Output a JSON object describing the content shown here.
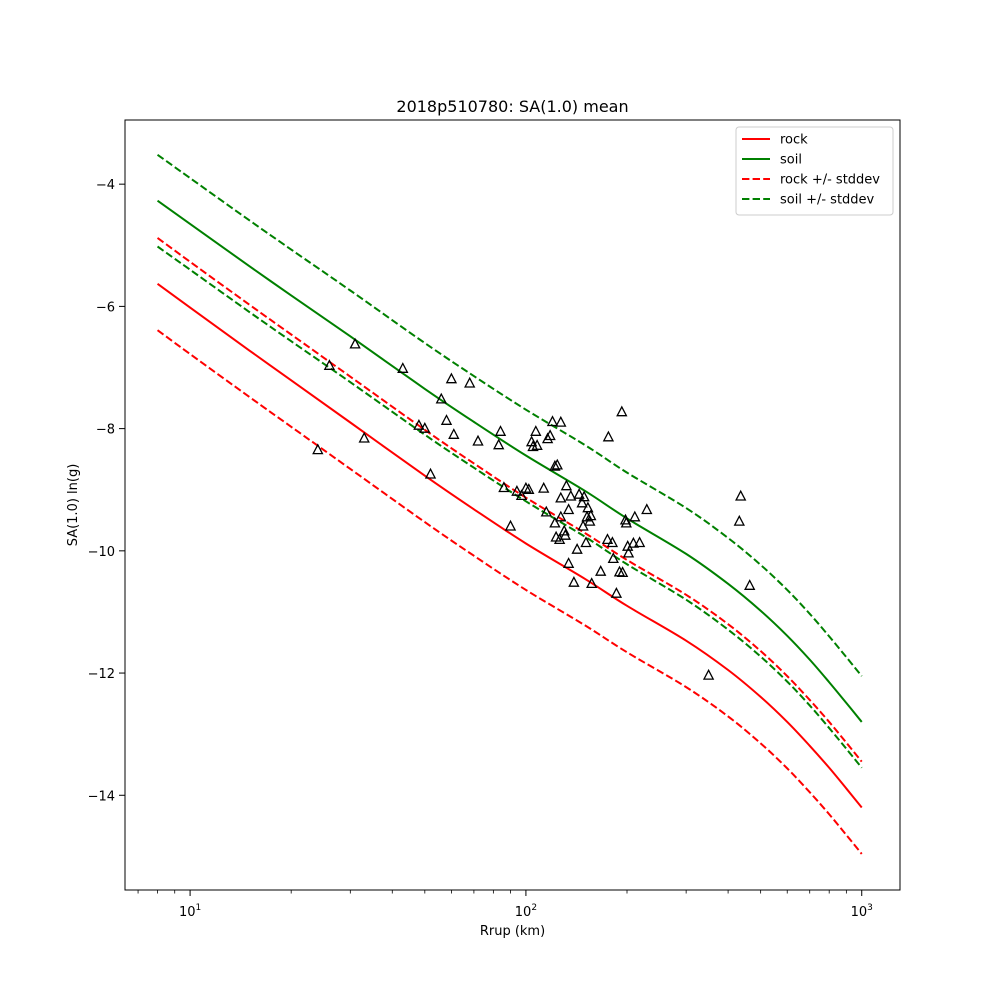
{
  "chart_data": {
    "type": "line",
    "title": "2018p510780: SA(1.0) mean",
    "xlabel": "Rrup (km)",
    "ylabel": "SA(1.0) ln(g)",
    "xscale": "log",
    "xlim": [
      6.4,
      1300
    ],
    "ylim": [
      -15.55,
      -2.95
    ],
    "xticks": [
      {
        "value": 10,
        "base": "10",
        "exp": "1"
      },
      {
        "value": 100,
        "base": "10",
        "exp": "2"
      },
      {
        "value": 1000,
        "base": "10",
        "exp": "3"
      }
    ],
    "yticks": [
      {
        "value": -4,
        "label": "−4"
      },
      {
        "value": -6,
        "label": "−6"
      },
      {
        "value": -8,
        "label": "−8"
      },
      {
        "value": -10,
        "label": "−10"
      },
      {
        "value": -12,
        "label": "−12"
      },
      {
        "value": -14,
        "label": "−14"
      }
    ],
    "legend_position": "top-right",
    "grid": false,
    "x": [
      8,
      10,
      15,
      20,
      30,
      50,
      70,
      100,
      150,
      200,
      300,
      400,
      500,
      600,
      700,
      800,
      900,
      1000
    ],
    "series": [
      {
        "name": "rock",
        "color": "#ff0000",
        "dash": "solid",
        "y": [
          -5.63,
          -6.02,
          -6.72,
          -7.21,
          -7.9,
          -8.77,
          -9.32,
          -9.88,
          -10.46,
          -10.9,
          -11.47,
          -11.95,
          -12.39,
          -12.8,
          -13.19,
          -13.55,
          -13.89,
          -14.2
        ]
      },
      {
        "name": "soil",
        "color": "#008000",
        "dash": "solid",
        "y": [
          -4.27,
          -4.65,
          -5.34,
          -5.82,
          -6.49,
          -7.35,
          -7.89,
          -8.44,
          -9.02,
          -9.47,
          -10.05,
          -10.54,
          -10.98,
          -11.39,
          -11.78,
          -12.15,
          -12.49,
          -12.8
        ]
      },
      {
        "name": "rock +/- stddev",
        "color": "#ff0000",
        "dash": "dashed",
        "group": "upper",
        "y": [
          -4.88,
          -5.27,
          -5.97,
          -6.46,
          -7.15,
          -8.02,
          -8.57,
          -9.13,
          -9.71,
          -10.15,
          -10.72,
          -11.2,
          -11.64,
          -12.05,
          -12.44,
          -12.8,
          -13.14,
          -13.45
        ]
      },
      {
        "name": "rock +/- stddev",
        "color": "#ff0000",
        "dash": "dashed",
        "group": "lower",
        "y": [
          -6.39,
          -6.78,
          -7.48,
          -7.97,
          -8.66,
          -9.53,
          -10.08,
          -10.64,
          -11.22,
          -11.66,
          -12.23,
          -12.71,
          -13.15,
          -13.56,
          -13.95,
          -14.31,
          -14.65,
          -14.96
        ]
      },
      {
        "name": "soil +/- stddev",
        "color": "#008000",
        "dash": "dashed",
        "group": "upper",
        "y": [
          -3.52,
          -3.9,
          -4.59,
          -5.07,
          -5.74,
          -6.6,
          -7.14,
          -7.69,
          -8.27,
          -8.72,
          -9.3,
          -9.79,
          -10.23,
          -10.64,
          -11.03,
          -11.4,
          -11.74,
          -12.05
        ]
      },
      {
        "name": "soil +/- stddev",
        "color": "#008000",
        "dash": "dashed",
        "group": "lower",
        "y": [
          -5.02,
          -5.4,
          -6.09,
          -6.57,
          -7.24,
          -8.1,
          -8.64,
          -9.19,
          -9.77,
          -10.22,
          -10.8,
          -11.29,
          -11.73,
          -12.14,
          -12.53,
          -12.9,
          -13.24,
          -13.55
        ]
      }
    ],
    "legend": [
      {
        "label": "rock",
        "color": "#ff0000",
        "dash": "solid"
      },
      {
        "label": "soil",
        "color": "#008000",
        "dash": "solid"
      },
      {
        "label": "rock +/- stddev",
        "color": "#ff0000",
        "dash": "dashed"
      },
      {
        "label": "soil +/- stddev",
        "color": "#008000",
        "dash": "dashed"
      }
    ],
    "observations": {
      "marker": "triangle-open",
      "color": "#000000",
      "points": [
        [
          24,
          -8.35
        ],
        [
          26,
          -6.97
        ],
        [
          31,
          -6.62
        ],
        [
          33,
          -8.16
        ],
        [
          43,
          -7.02
        ],
        [
          48,
          -7.95
        ],
        [
          50,
          -8.0
        ],
        [
          52,
          -8.75
        ],
        [
          56,
          -7.52
        ],
        [
          58,
          -7.87
        ],
        [
          60,
          -7.19
        ],
        [
          61,
          -8.1
        ],
        [
          68,
          -7.26
        ],
        [
          72,
          -8.21
        ],
        [
          83,
          -8.27
        ],
        [
          84,
          -8.05
        ],
        [
          86,
          -8.97
        ],
        [
          90,
          -9.6
        ],
        [
          94,
          -9.03
        ],
        [
          97,
          -9.1
        ],
        [
          100,
          -8.98
        ],
        [
          102,
          -9.0
        ],
        [
          104,
          -8.22
        ],
        [
          105,
          -8.3
        ],
        [
          107,
          -8.05
        ],
        [
          108,
          -8.28
        ],
        [
          113,
          -8.98
        ],
        [
          115,
          -9.37
        ],
        [
          116,
          -8.17
        ],
        [
          118,
          -8.12
        ],
        [
          120,
          -7.89
        ],
        [
          122,
          -8.62
        ],
        [
          122,
          -9.55
        ],
        [
          123,
          -9.78
        ],
        [
          124,
          -8.6
        ],
        [
          126,
          -9.82
        ],
        [
          127,
          -7.9
        ],
        [
          127,
          -9.45
        ],
        [
          127,
          -9.14
        ],
        [
          130,
          -9.68
        ],
        [
          131,
          -9.75
        ],
        [
          132,
          -8.94
        ],
        [
          134,
          -9.33
        ],
        [
          134,
          -10.21
        ],
        [
          136,
          -9.11
        ],
        [
          139,
          -10.52
        ],
        [
          142,
          -9.98
        ],
        [
          144,
          -9.08
        ],
        [
          147,
          -9.22
        ],
        [
          148,
          -9.6
        ],
        [
          149,
          -9.12
        ],
        [
          151,
          -9.87
        ],
        [
          152,
          -9.45
        ],
        [
          153,
          -9.3
        ],
        [
          155,
          -9.52
        ],
        [
          156,
          -9.43
        ],
        [
          157,
          -10.54
        ],
        [
          167,
          -10.34
        ],
        [
          175,
          -9.82
        ],
        [
          176,
          -8.14
        ],
        [
          181,
          -9.87
        ],
        [
          182,
          -10.13
        ],
        [
          186,
          -10.7
        ],
        [
          190,
          -10.35
        ],
        [
          193,
          -7.73
        ],
        [
          194,
          -10.36
        ],
        [
          198,
          -9.5
        ],
        [
          199,
          -9.55
        ],
        [
          201,
          -9.93
        ],
        [
          202,
          -10.04
        ],
        [
          209,
          -9.88
        ],
        [
          211,
          -9.45
        ],
        [
          218,
          -9.87
        ],
        [
          229,
          -9.33
        ],
        [
          350,
          -12.04
        ],
        [
          432,
          -9.52
        ],
        [
          436,
          -9.11
        ],
        [
          464,
          -10.57
        ]
      ]
    }
  }
}
